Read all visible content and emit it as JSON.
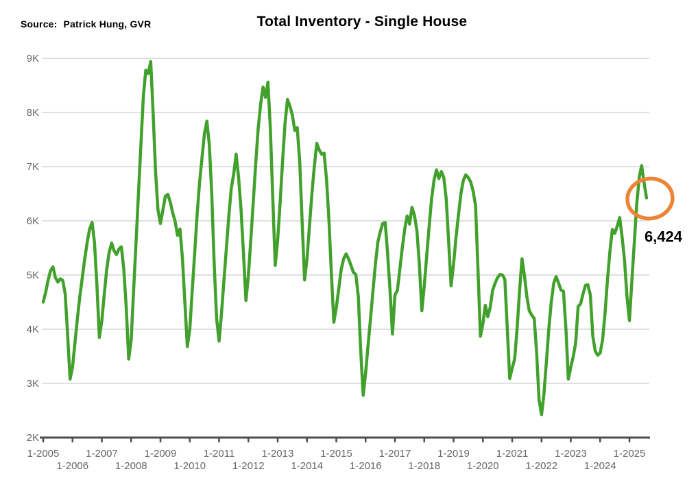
{
  "header": {
    "source_label": "Source:",
    "source_value": "Patrick Hung, GVR",
    "title": "Total Inventory - Single House"
  },
  "chart_data": {
    "type": "line",
    "title": "Total Inventory - Single House",
    "source": "Patrick Hung, GVR",
    "x_frequency": "monthly",
    "x_start": "1-2005",
    "x_end": "8-2025",
    "ylim": [
      2000,
      9000
    ],
    "grid": "horizontal",
    "legend": "none",
    "line_color": "#42a02c",
    "grid_color": "#d6d6d6",
    "axis_color": "#4c4c4c",
    "tick_label_color": "#666666",
    "y_ticks": [
      {
        "label": "2K",
        "value": 2000
      },
      {
        "label": "3K",
        "value": 3000
      },
      {
        "label": "4K",
        "value": 4000
      },
      {
        "label": "5K",
        "value": 5000
      },
      {
        "label": "6K",
        "value": 6000
      },
      {
        "label": "7K",
        "value": 7000
      },
      {
        "label": "8K",
        "value": 8000
      },
      {
        "label": "9K",
        "value": 9000
      }
    ],
    "x_ticks": [
      {
        "label": "1-2005",
        "month": 0
      },
      {
        "label": "1-2006",
        "month": 12
      },
      {
        "label": "1-2007",
        "month": 24
      },
      {
        "label": "1-2008",
        "month": 36
      },
      {
        "label": "1-2009",
        "month": 48
      },
      {
        "label": "1-2010",
        "month": 60
      },
      {
        "label": "1-2011",
        "month": 72
      },
      {
        "label": "1-2012",
        "month": 84
      },
      {
        "label": "1-2013",
        "month": 96
      },
      {
        "label": "1-2014",
        "month": 108
      },
      {
        "label": "1-2015",
        "month": 120
      },
      {
        "label": "1-2016",
        "month": 132
      },
      {
        "label": "1-2017",
        "month": 144
      },
      {
        "label": "1-2018",
        "month": 156
      },
      {
        "label": "1-2019",
        "month": 168
      },
      {
        "label": "1-2020",
        "month": 180
      },
      {
        "label": "1-2021",
        "month": 192
      },
      {
        "label": "1-2022",
        "month": 204
      },
      {
        "label": "1-2023",
        "month": 216
      },
      {
        "label": "1-2024",
        "month": 228
      },
      {
        "label": "1-2025",
        "month": 240
      }
    ],
    "values": [
      4500,
      4680,
      4900,
      5080,
      5150,
      4950,
      4870,
      4930,
      4900,
      4650,
      3900,
      3080,
      3300,
      3750,
      4200,
      4600,
      4950,
      5300,
      5600,
      5850,
      5970,
      5600,
      4800,
      3850,
      4150,
      4650,
      5100,
      5420,
      5590,
      5450,
      5380,
      5480,
      5520,
      5100,
      4400,
      3450,
      3800,
      4700,
      5600,
      6500,
      7400,
      8300,
      8780,
      8720,
      8940,
      8000,
      6900,
      6200,
      5950,
      6200,
      6450,
      6490,
      6350,
      6150,
      5990,
      5730,
      5850,
      5300,
      4500,
      3680,
      4000,
      4700,
      5400,
      6100,
      6700,
      7160,
      7600,
      7840,
      7400,
      6500,
      5200,
      4200,
      3780,
      4300,
      4900,
      5500,
      6100,
      6600,
      6870,
      7230,
      6800,
      6200,
      5400,
      4530,
      5000,
      5650,
      6350,
      7050,
      7700,
      8150,
      8470,
      8280,
      8560,
      7700,
      6400,
      5180,
      5650,
      6350,
      7100,
      7800,
      8240,
      8120,
      7950,
      7670,
      7720,
      7100,
      6000,
      4910,
      5300,
      5900,
      6500,
      7000,
      7430,
      7310,
      7230,
      7250,
      6750,
      6000,
      5000,
      4130,
      4400,
      4750,
      5100,
      5300,
      5390,
      5300,
      5180,
      5050,
      5010,
      4600,
      3600,
      2780,
      3200,
      3700,
      4200,
      4700,
      5200,
      5610,
      5800,
      5950,
      5970,
      5400,
      4700,
      3910,
      4630,
      4720,
      5100,
      5500,
      5850,
      6090,
      5940,
      6250,
      6100,
      5810,
      5200,
      4340,
      4800,
      5350,
      5900,
      6400,
      6750,
      6940,
      6780,
      6910,
      6800,
      6400,
      5600,
      4800,
      5200,
      5700,
      6100,
      6500,
      6750,
      6850,
      6800,
      6720,
      6550,
      6280,
      5100,
      3870,
      4100,
      4440,
      4230,
      4400,
      4720,
      4850,
      4950,
      5010,
      5000,
      4920,
      4000,
      3090,
      3280,
      3450,
      4000,
      4700,
      5300,
      5000,
      4600,
      4340,
      4260,
      4200,
      3580,
      2700,
      2420,
      2800,
      3400,
      4000,
      4500,
      4850,
      4970,
      4850,
      4720,
      4700,
      4000,
      3080,
      3300,
      3500,
      3750,
      4420,
      4470,
      4650,
      4810,
      4820,
      4630,
      3870,
      3600,
      3520,
      3560,
      3800,
      4290,
      4900,
      5430,
      5840,
      5770,
      5900,
      6060,
      5700,
      5270,
      4600,
      4160,
      4900,
      5600,
      6320,
      6800,
      7020,
      6700,
      6424
    ],
    "annotation": {
      "shape": "ellipse",
      "color": "#ed8435",
      "label": "6,424",
      "value": 6424,
      "points_to": "last-value"
    }
  }
}
